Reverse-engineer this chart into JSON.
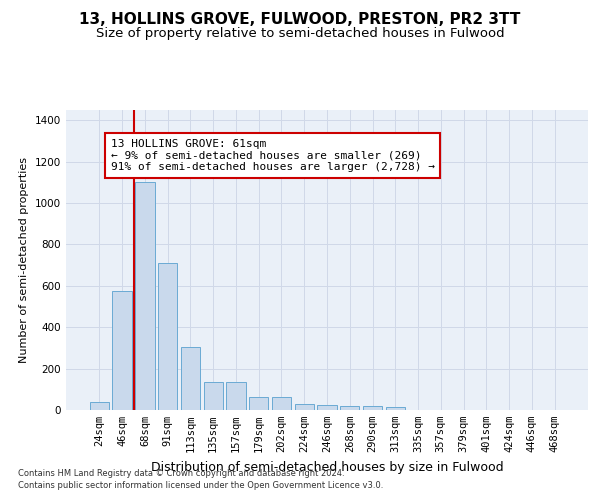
{
  "title": "13, HOLLINS GROVE, FULWOOD, PRESTON, PR2 3TT",
  "subtitle": "Size of property relative to semi-detached houses in Fulwood",
  "xlabel": "Distribution of semi-detached houses by size in Fulwood",
  "ylabel": "Number of semi-detached properties",
  "footnote1": "Contains HM Land Registry data © Crown copyright and database right 2024.",
  "footnote2": "Contains public sector information licensed under the Open Government Licence v3.0.",
  "categories": [
    "24sqm",
    "46sqm",
    "68sqm",
    "91sqm",
    "113sqm",
    "135sqm",
    "157sqm",
    "179sqm",
    "202sqm",
    "224sqm",
    "246sqm",
    "268sqm",
    "290sqm",
    "313sqm",
    "335sqm",
    "357sqm",
    "379sqm",
    "401sqm",
    "424sqm",
    "446sqm",
    "468sqm"
  ],
  "values": [
    40,
    575,
    1100,
    710,
    305,
    135,
    135,
    65,
    65,
    30,
    25,
    20,
    20,
    15,
    0,
    0,
    0,
    0,
    0,
    0,
    0
  ],
  "bar_color": "#c9d9ec",
  "bar_edge_color": "#6aaad4",
  "marker_color": "#cc0000",
  "annotation_box_color": "#cc0000",
  "marker_smaller_pct": "9%",
  "marker_smaller_n": "269",
  "marker_larger_pct": "91%",
  "marker_larger_n": "2,728",
  "marker_label": "13 HOLLINS GROVE: 61sqm",
  "ylim": [
    0,
    1450
  ],
  "grid_color": "#d0d8e8",
  "bg_color": "#eaf0f8",
  "title_fontsize": 11,
  "subtitle_fontsize": 9.5,
  "xlabel_fontsize": 9,
  "ylabel_fontsize": 8,
  "tick_fontsize": 7.5,
  "annotation_fontsize": 8,
  "footnote_fontsize": 6
}
